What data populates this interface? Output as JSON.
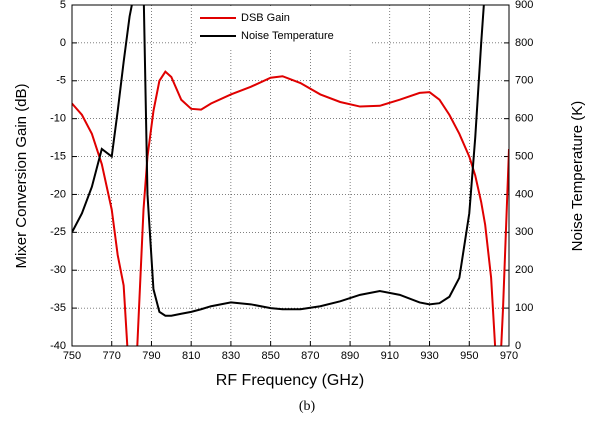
{
  "chart_data": {
    "type": "line",
    "xlabel": "RF Frequency (GHz)",
    "ylabel": "Mixer Conversion Gain (dB)",
    "y2label": "Noise Temperature (K)",
    "caption": "(b)",
    "x": [
      750,
      755,
      760,
      765,
      770,
      773,
      776,
      779,
      782,
      786,
      788,
      791,
      794,
      797,
      800,
      805,
      810,
      815,
      820,
      830,
      840,
      850,
      856,
      865,
      875,
      885,
      895,
      905,
      915,
      925,
      930,
      935,
      940,
      945,
      950,
      953,
      956,
      958,
      961,
      963,
      965,
      967,
      970
    ],
    "series": [
      {
        "name": "DSB Gain",
        "color": "#e00000",
        "values": [
          -8,
          -9.5,
          -12,
          -16,
          -22,
          -28,
          -32,
          -45,
          -45,
          -22,
          -15,
          -9,
          -5,
          -3.8,
          -4.5,
          -7.5,
          -8.7,
          -8.8,
          -8,
          -6.8,
          -5.8,
          -4.6,
          -4.4,
          -5.3,
          -6.8,
          -7.8,
          -8.4,
          -8.3,
          -7.5,
          -6.6,
          -6.5,
          -7.5,
          -9.5,
          -12,
          -15,
          -17.5,
          -21,
          -24,
          -31,
          -40,
          -46,
          -35,
          -14
        ]
      },
      {
        "name": "Noise Temperature",
        "color": "#000000",
        "axis": "y2",
        "values": [
          300,
          350,
          420,
          520,
          500,
          620,
          750,
          870,
          950,
          950,
          400,
          150,
          90,
          80,
          80,
          85,
          90,
          97,
          105,
          115,
          110,
          100,
          97,
          97,
          105,
          118,
          135,
          145,
          135,
          115,
          110,
          113,
          130,
          180,
          350,
          550,
          800,
          950,
          null,
          null,
          null,
          null,
          null
        ]
      }
    ],
    "xlim": [
      750,
      970
    ],
    "xticks": [
      750,
      770,
      790,
      810,
      830,
      850,
      870,
      890,
      910,
      930,
      950,
      970
    ],
    "ylim": [
      -40,
      5
    ],
    "yticks": [
      5,
      0,
      -5,
      -10,
      -15,
      -20,
      -25,
      -30,
      -35,
      -40
    ],
    "y2lim": [
      0,
      900
    ],
    "y2ticks": [
      900,
      800,
      700,
      600,
      500,
      400,
      300,
      200,
      100,
      0
    ],
    "grid": true,
    "legend": "top"
  }
}
